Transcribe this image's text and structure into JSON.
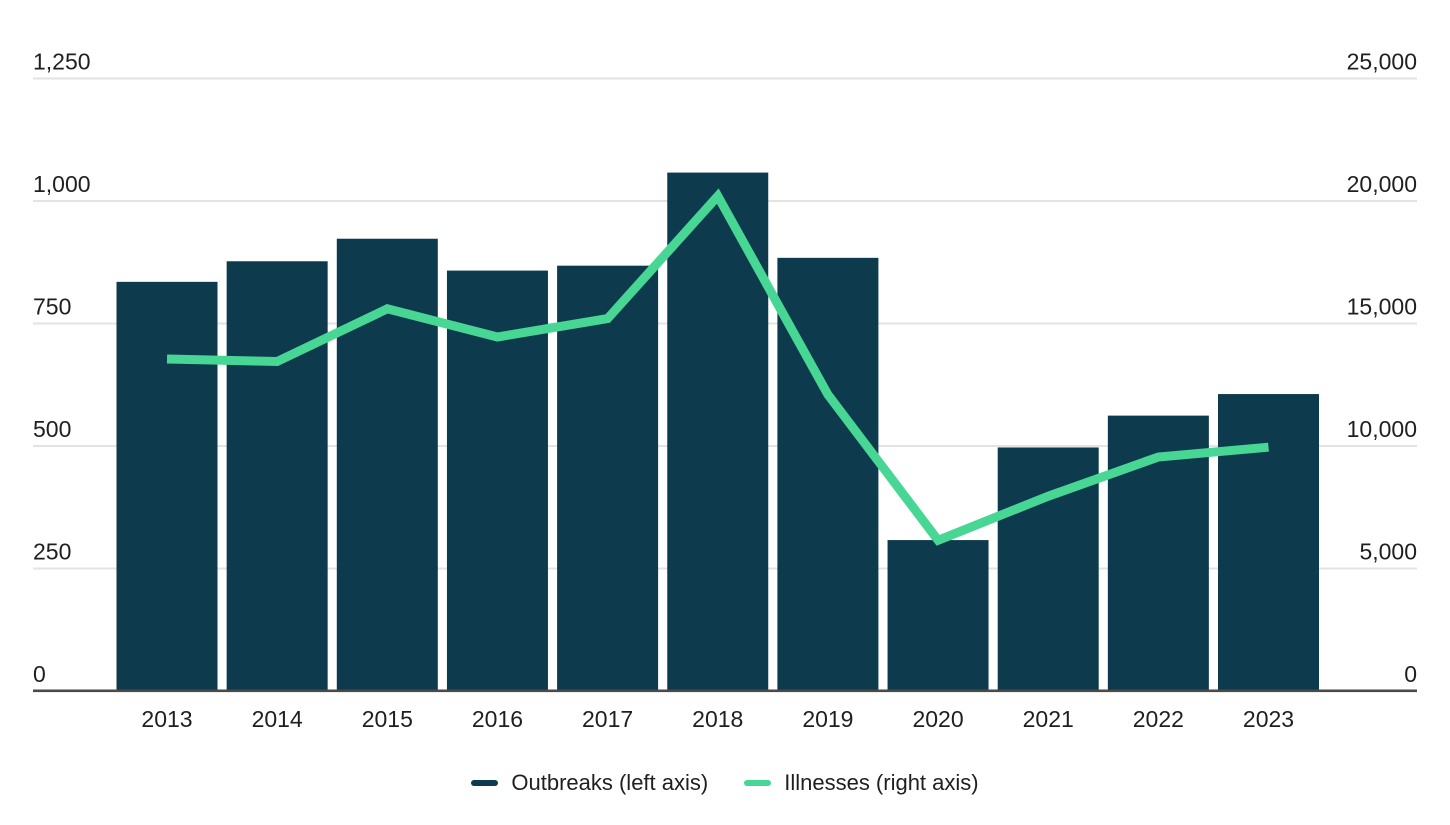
{
  "chart_data": {
    "type": "combo-bar-line",
    "categories": [
      "2013",
      "2014",
      "2015",
      "2016",
      "2017",
      "2018",
      "2019",
      "2020",
      "2021",
      "2022",
      "2023"
    ],
    "series": [
      {
        "name": "Outbreaks",
        "legend_label": "Outbreaks (left axis)",
        "render": "bar",
        "axis": "left",
        "color": "#0d3a4c",
        "values": [
          835,
          877,
          923,
          858,
          868,
          1058,
          884,
          308,
          497,
          562,
          606
        ]
      },
      {
        "name": "Illnesses",
        "legend_label": "Illnesses (right axis)",
        "render": "line",
        "axis": "right",
        "color": "#47d694",
        "values": [
          13550,
          13450,
          15600,
          14450,
          15200,
          20200,
          12100,
          6150,
          7950,
          9550,
          9950
        ]
      }
    ],
    "left_axis": {
      "min": 0,
      "max": 1250,
      "ticks": [
        {
          "value": 0,
          "label": "0"
        },
        {
          "value": 250,
          "label": "250"
        },
        {
          "value": 500,
          "label": "500"
        },
        {
          "value": 750,
          "label": "750"
        },
        {
          "value": 1000,
          "label": "1,000"
        },
        {
          "value": 1250,
          "label": "1,250"
        }
      ]
    },
    "right_axis": {
      "min": 0,
      "max": 25000,
      "ticks": [
        {
          "value": 0,
          "label": "0"
        },
        {
          "value": 5000,
          "label": "5,000"
        },
        {
          "value": 10000,
          "label": "10,000"
        },
        {
          "value": 15000,
          "label": "15,000"
        },
        {
          "value": 20000,
          "label": "20,000"
        },
        {
          "value": 25000,
          "label": "25,000"
        }
      ]
    },
    "title": "",
    "xlabel": "",
    "ylabel": "",
    "grid": true,
    "legend_position": "bottom-center",
    "colors": {
      "gridline": "#e3e3e3",
      "axis_line": "#4a4a4a",
      "text": "#1f1f1f",
      "background": "#ffffff"
    }
  }
}
